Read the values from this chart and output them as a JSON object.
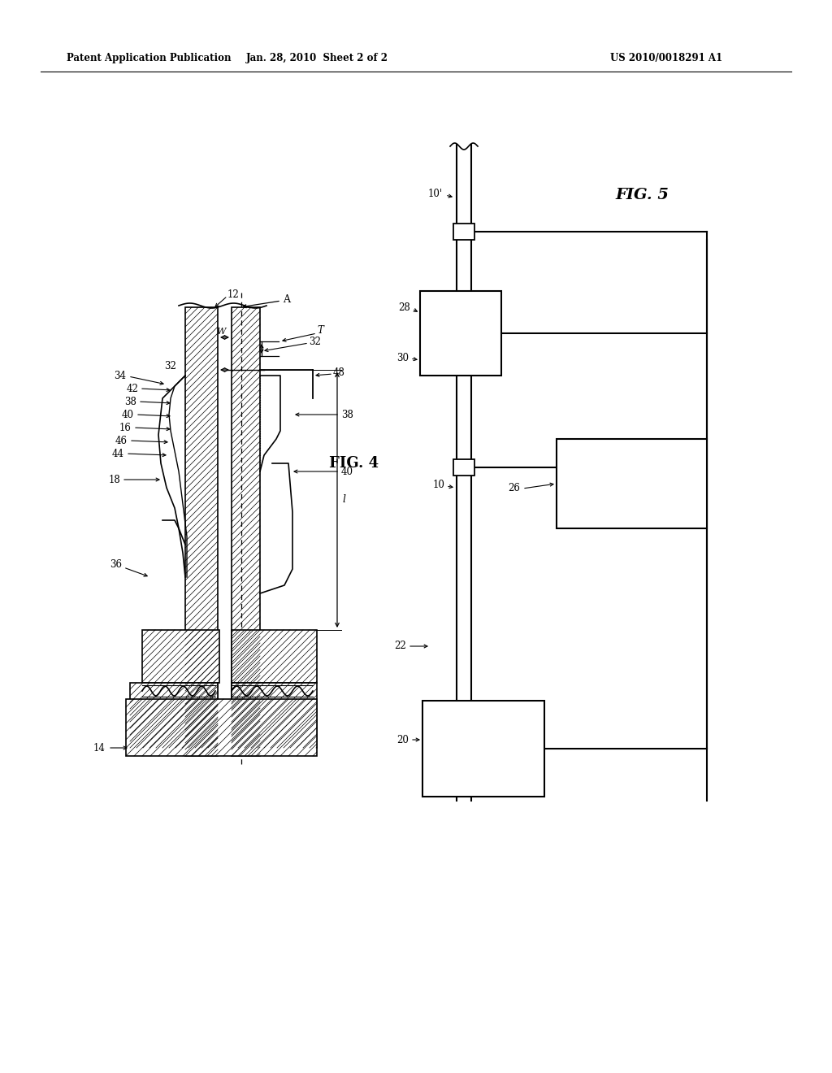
{
  "bg_color": "#ffffff",
  "header_left": "Patent Application Publication",
  "header_mid": "Jan. 28, 2010  Sheet 2 of 2",
  "header_right": "US 2010/0018291 A1",
  "fig4_label": "FIG. 4",
  "fig5_label": "FIG. 5"
}
